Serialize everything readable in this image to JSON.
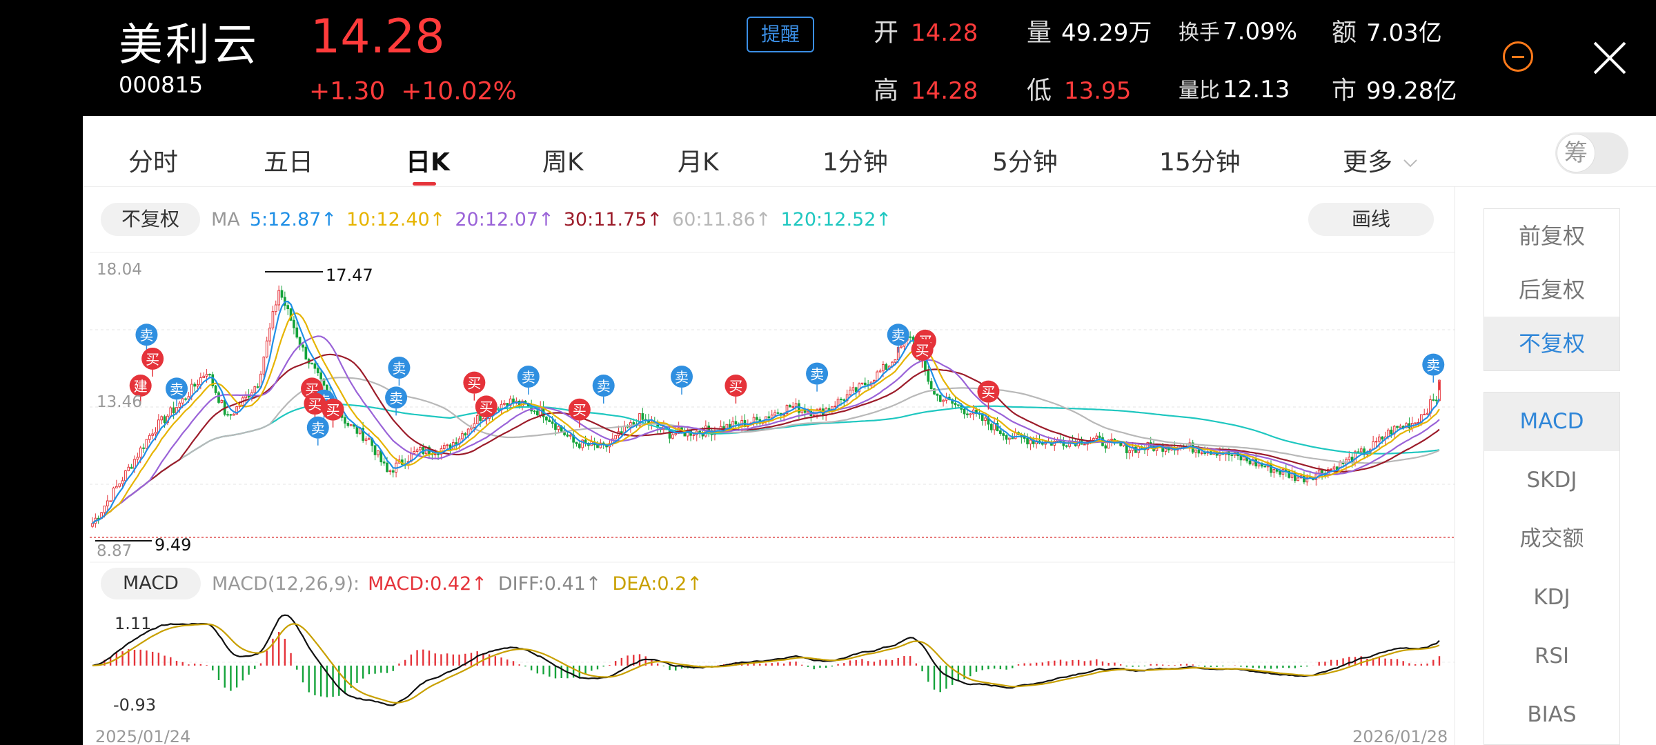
{
  "header": {
    "name": "美利云",
    "code": "000815",
    "price": "14.28",
    "change": "+1.30",
    "change_pct": "+10.02%",
    "alert_label": "提醒",
    "quotes": [
      {
        "label": "开",
        "value": "14.28"
      },
      {
        "label": "量",
        "value": "49.29万"
      },
      {
        "label": "换手",
        "value": "7.09%"
      },
      {
        "label": "额",
        "value": "7.03亿"
      },
      {
        "label": "高",
        "value": "14.28"
      },
      {
        "label": "低",
        "value": "13.95"
      },
      {
        "label": "量比",
        "value": "12.13"
      },
      {
        "label": "市",
        "value": "99.28亿"
      }
    ]
  },
  "tabs": [
    "分时",
    "五日",
    "日K",
    "周K",
    "月K",
    "1分钟",
    "5分钟",
    "15分钟",
    "更多"
  ],
  "active_tab": "日K",
  "chip_label": "筹",
  "ma_bar": {
    "adjust_label": "不复权",
    "ma_label": "MA",
    "items": [
      {
        "text": "5:12.87↑",
        "color": "#1f8fe6"
      },
      {
        "text": "10:12.40↑",
        "color": "#e6b400"
      },
      {
        "text": "20:12.07↑",
        "color": "#9a63d8"
      },
      {
        "text": "30:11.75↑",
        "color": "#9c1c2a"
      },
      {
        "text": "60:11.86↑",
        "color": "#b8b8b8"
      },
      {
        "text": "120:12.52↑",
        "color": "#1fc7c0"
      }
    ],
    "draw_label": "画线"
  },
  "macd_bar": {
    "label": "MACD",
    "params": "MACD(12,26,9):",
    "items": [
      {
        "text": "MACD:0.42↑",
        "color": "#e5333a"
      },
      {
        "text": "DIFF:0.41↑",
        "color": "#888888"
      },
      {
        "text": "DEA:0.2↑",
        "color": "#c8a000"
      }
    ]
  },
  "side_adjust": [
    "前复权",
    "后复权",
    "不复权"
  ],
  "side_adjust_active": "不复权",
  "side_indicators": [
    "MACD",
    "SKDJ",
    "成交额",
    "KDJ",
    "RSI",
    "BIAS"
  ],
  "side_indicator_active": "MACD",
  "signal_labels": {
    "buy": "买",
    "sell": "卖",
    "build": "建"
  },
  "chart_data": {
    "type": "candlestick",
    "y_ticks": [
      "18.04",
      "13.46",
      "8.87"
    ],
    "ylim": [
      8.87,
      18.04
    ],
    "high_label": "17.47",
    "low_label": "9.49",
    "x_start": "2025/01/24",
    "x_end": "2026/01/28",
    "macd_ticks": [
      "1.11",
      "-0.93"
    ],
    "macd_ylim": [
      -0.93,
      1.11
    ],
    "last_close": 14.28,
    "ma_colors": {
      "ma5": "#1f8fe6",
      "ma10": "#e6b400",
      "ma20": "#9a63d8",
      "ma30": "#9c1c2a",
      "ma60": "#b8b8b8",
      "ma120": "#1fc7c0"
    },
    "close_path": [
      [
        0,
        9.5
      ],
      [
        10,
        11.0
      ],
      [
        20,
        12.6
      ],
      [
        30,
        13.6
      ],
      [
        38,
        14.6
      ],
      [
        45,
        13.0
      ],
      [
        55,
        14.2
      ],
      [
        62,
        17.3
      ],
      [
        70,
        15.3
      ],
      [
        78,
        13.8
      ],
      [
        85,
        12.8
      ],
      [
        92,
        12.3
      ],
      [
        98,
        11.2
      ],
      [
        108,
        11.9
      ],
      [
        118,
        12.0
      ],
      [
        128,
        13.0
      ],
      [
        138,
        13.6
      ],
      [
        150,
        13.2
      ],
      [
        160,
        12.2
      ],
      [
        170,
        12.0
      ],
      [
        182,
        13.0
      ],
      [
        192,
        12.5
      ],
      [
        205,
        12.6
      ],
      [
        220,
        12.9
      ],
      [
        232,
        13.4
      ],
      [
        242,
        13.2
      ],
      [
        255,
        14.0
      ],
      [
        265,
        14.8
      ],
      [
        272,
        15.8
      ],
      [
        280,
        13.8
      ],
      [
        292,
        13.2
      ],
      [
        305,
        12.4
      ],
      [
        318,
        12.2
      ],
      [
        332,
        12.3
      ],
      [
        345,
        12.0
      ],
      [
        360,
        12.1
      ],
      [
        375,
        11.9
      ],
      [
        390,
        11.4
      ],
      [
        402,
        11.0
      ],
      [
        414,
        11.4
      ],
      [
        425,
        12.0
      ],
      [
        432,
        12.6
      ],
      [
        440,
        12.9
      ],
      [
        448,
        13.8
      ]
    ],
    "signals": [
      {
        "t": "sell",
        "i": 18,
        "p": 15.8
      },
      {
        "t": "buy",
        "i": 20,
        "p": 15.0
      },
      {
        "t": "build",
        "i": 16,
        "p": 14.1
      },
      {
        "t": "sell",
        "i": 28,
        "p": 14.0
      },
      {
        "t": "buy",
        "i": 73,
        "p": 14.0
      },
      {
        "t": "sell",
        "i": 77,
        "p": 13.6
      },
      {
        "t": "buy",
        "i": 74,
        "p": 13.5
      },
      {
        "t": "buy",
        "i": 80,
        "p": 13.3
      },
      {
        "t": "sell",
        "i": 75,
        "p": 12.7
      },
      {
        "t": "sell",
        "i": 102,
        "p": 14.7
      },
      {
        "t": "sell",
        "i": 101,
        "p": 13.7
      },
      {
        "t": "buy",
        "i": 127,
        "p": 14.2
      },
      {
        "t": "buy",
        "i": 131,
        "p": 13.4
      },
      {
        "t": "sell",
        "i": 145,
        "p": 14.4
      },
      {
        "t": "buy",
        "i": 162,
        "p": 13.3
      },
      {
        "t": "sell",
        "i": 170,
        "p": 14.1
      },
      {
        "t": "sell",
        "i": 196,
        "p": 14.4
      },
      {
        "t": "buy",
        "i": 214,
        "p": 14.1
      },
      {
        "t": "sell",
        "i": 241,
        "p": 14.5
      },
      {
        "t": "sell",
        "i": 268,
        "p": 15.8
      },
      {
        "t": "buy",
        "i": 277,
        "p": 15.6
      },
      {
        "t": "buy",
        "i": 276,
        "p": 15.3
      },
      {
        "t": "buy",
        "i": 298,
        "p": 13.9
      },
      {
        "t": "sell",
        "i": 446,
        "p": 14.8
      }
    ]
  }
}
